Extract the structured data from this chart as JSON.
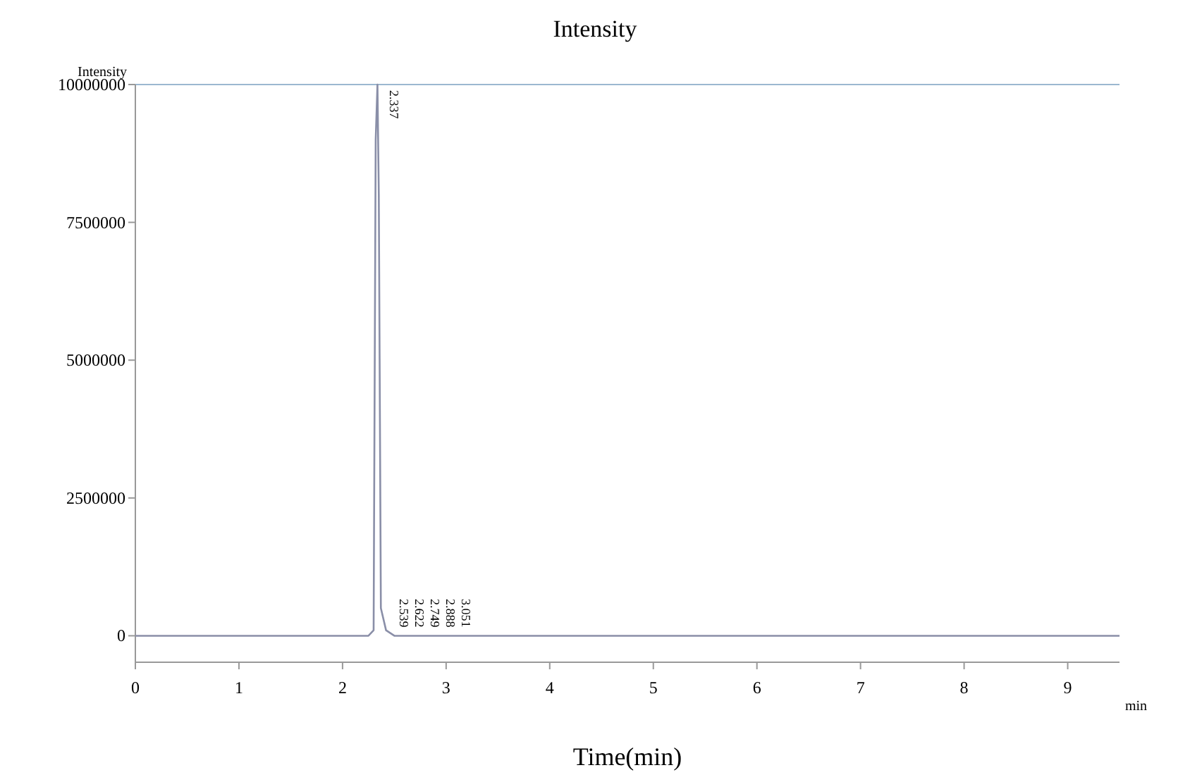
{
  "chart_data": {
    "type": "line",
    "title": "Intensity",
    "xlabel": "Time(min)",
    "ylabel": "Intensity",
    "x": [
      0,
      1,
      2,
      2.25,
      2.3,
      2.32,
      2.337,
      2.35,
      2.37,
      2.42,
      2.5,
      2.539,
      2.6,
      2.622,
      2.749,
      2.888,
      3.051,
      3.2,
      4,
      5,
      6,
      7,
      8,
      9,
      9.5
    ],
    "series": [
      {
        "color": "#8a8fa8",
        "values": [
          0,
          0,
          0,
          0,
          100000,
          9000000,
          10000000,
          8000000,
          500000,
          100000,
          0,
          0,
          0,
          0,
          0,
          0,
          0,
          0,
          0,
          0,
          0,
          0,
          0,
          0,
          0
        ]
      }
    ],
    "xlim": [
      0,
      9.5
    ],
    "ylim": [
      -480000,
      10000000
    ],
    "xticks": [
      0,
      1,
      2,
      3,
      4,
      5,
      6,
      7,
      8,
      9
    ],
    "yticks": [
      0,
      2500000,
      5000000,
      7500000,
      10000000
    ],
    "annotations": [
      {
        "text": "2.337",
        "x": 2.337,
        "y": 10000000
      },
      {
        "text": "2.539",
        "x": 2.539,
        "y": 0
      },
      {
        "text": "2.622",
        "x": 2.622,
        "y": 0
      },
      {
        "text": "2.749",
        "x": 2.749,
        "y": 0
      },
      {
        "text": "2.888",
        "x": 2.888,
        "y": 0
      },
      {
        "text": "3.051",
        "x": 3.051,
        "y": 0
      },
      "min"
    ],
    "grid": false,
    "line_style": "solid"
  }
}
